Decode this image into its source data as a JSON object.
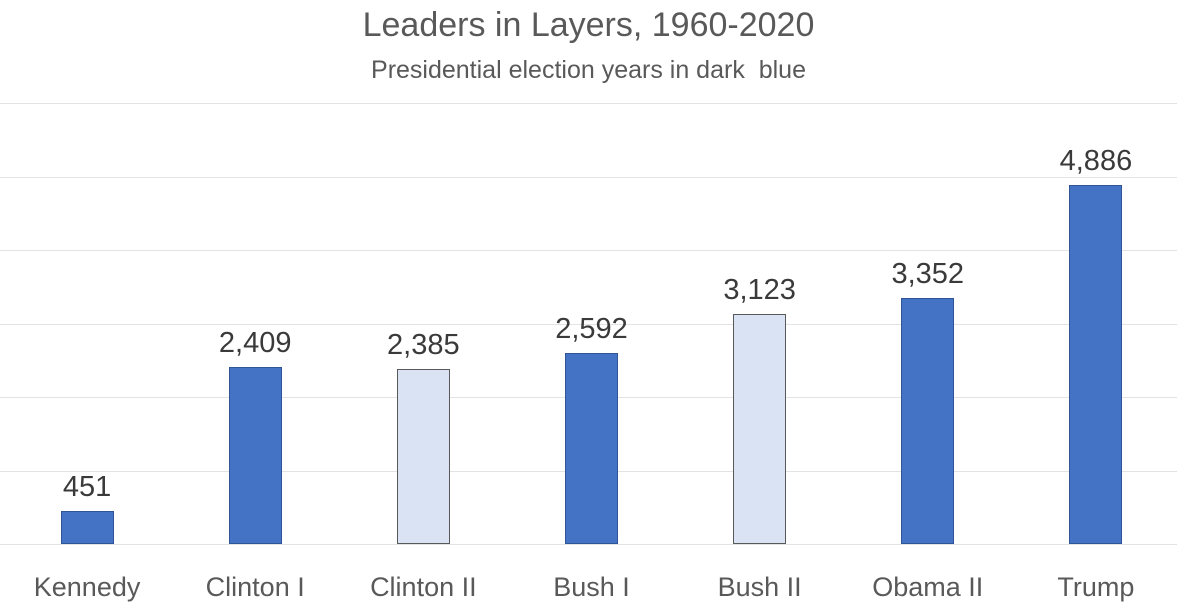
{
  "chart": {
    "title": "Leaders in Layers, 1960-2020",
    "subtitle": "Presidential election years in dark  blue"
  },
  "chart_data": {
    "type": "bar",
    "title": "Leaders in Layers, 1960-2020",
    "subtitle": "Presidential election years in dark  blue",
    "categories": [
      "Kennedy",
      "Clinton I",
      "Clinton II",
      "Bush I",
      "Bush II",
      "Obama II",
      "Trump"
    ],
    "values": [
      451,
      2409,
      2385,
      2592,
      3123,
      3352,
      4886
    ],
    "value_labels": [
      "451",
      "2,409",
      "2,385",
      "2,592",
      "3,123",
      "3,352",
      "4,886"
    ],
    "bar_styles": [
      "dark",
      "dark",
      "light",
      "dark",
      "light",
      "dark",
      "dark"
    ],
    "xlabel": "",
    "ylabel": "",
    "ylim": [
      0,
      6000
    ],
    "grid_interval": 1000,
    "grid": true,
    "legend": "none",
    "colors": {
      "dark_fill": "#4472c4",
      "dark_border": "#2f5597",
      "light_fill": "#dae3f3",
      "light_border": "#595959",
      "gridline": "#e3e3e3",
      "title_text": "#595959",
      "value_text": "#3a3a3a",
      "category_text": "#595959",
      "background": "#ffffff"
    }
  }
}
